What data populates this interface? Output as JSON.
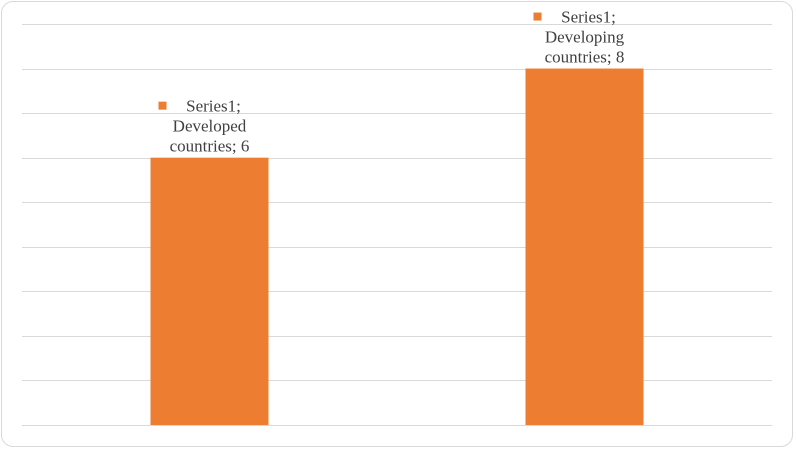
{
  "chart_data": {
    "type": "bar",
    "categories": [
      "Developed countries",
      "Developing countries"
    ],
    "series": [
      {
        "name": "Series1",
        "values": [
          6,
          8
        ]
      }
    ],
    "ylim": [
      0,
      9
    ],
    "grid": true,
    "bar_color": "#ed7d31",
    "data_labels": [
      [
        "Series1;",
        "Developed",
        "countries; 6"
      ],
      [
        "Series1;",
        "Developing",
        "countries; 8"
      ]
    ]
  }
}
